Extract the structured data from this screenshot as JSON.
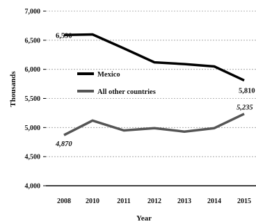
{
  "chart_data": {
    "type": "line",
    "xlabel": "Year",
    "ylabel": "Thousands",
    "categories": [
      "2008",
      "2010",
      "2011",
      "2012",
      "2013",
      "2014",
      "2015"
    ],
    "ylim": [
      4000,
      7000
    ],
    "yticks": [
      "4,000",
      "4,500",
      "5,000",
      "5,500",
      "6,000",
      "6,500",
      "7,000"
    ],
    "grid": "horizontal dashed",
    "legend_position": "left-middle",
    "series": [
      {
        "name": "Mexico",
        "color": "#000000",
        "values": [
          6590,
          6600,
          6360,
          6120,
          6090,
          6050,
          5810
        ],
        "labels": {
          "first": "6,590",
          "last": "5,810"
        }
      },
      {
        "name": "All other countries",
        "color": "#555555",
        "values": [
          4870,
          5120,
          4950,
          4990,
          4930,
          4990,
          5235
        ],
        "labels": {
          "first": "4,870",
          "last": "5,235"
        }
      }
    ]
  }
}
